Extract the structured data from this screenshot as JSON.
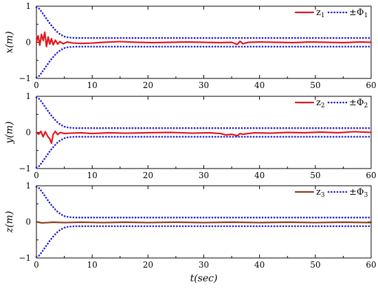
{
  "chart_data": [
    {
      "type": "line",
      "ylabel": "x(m)",
      "xlim": [
        0,
        60
      ],
      "ylim": [
        -1,
        1
      ],
      "xticks": [
        0,
        10,
        20,
        30,
        40,
        50,
        60
      ],
      "yticks": [
        -1,
        0,
        1
      ],
      "legend": [
        {
          "label": "z",
          "sub": "1",
          "color": "#e0161c",
          "style": "solid"
        },
        {
          "label": "±Φ",
          "sub": "1",
          "color": "#1f1fd0",
          "style": "dotted"
        }
      ],
      "series": [
        {
          "name": "z1",
          "color": "#e0161c",
          "style": "solid",
          "x": [
            0,
            0.3,
            0.6,
            0.9,
            1.2,
            1.5,
            1.8,
            2.1,
            2.4,
            2.7,
            3.0,
            3.4,
            3.8,
            4.2,
            4.8,
            5.5,
            6.5,
            8,
            10,
            12,
            15,
            18,
            21,
            24,
            27,
            30,
            33,
            35,
            36,
            36.5,
            37,
            38,
            40,
            43,
            46,
            49,
            52,
            55,
            58,
            60
          ],
          "values": [
            0,
            0.18,
            -0.08,
            0.22,
            0.05,
            0.28,
            -0.12,
            0.15,
            -0.05,
            0.1,
            -0.07,
            0.06,
            -0.05,
            0.02,
            -0.04,
            0.01,
            -0.02,
            -0.03,
            -0.02,
            0.0,
            0.02,
            0.0,
            -0.01,
            0.0,
            0.01,
            0.0,
            -0.01,
            0.0,
            -0.06,
            0.03,
            -0.04,
            0.0,
            0.01,
            0.0,
            -0.01,
            0.01,
            0.0,
            -0.01,
            0.01,
            0.0
          ]
        },
        {
          "name": "+Phi1",
          "color": "#1f1fd0",
          "style": "dotted",
          "x": [
            0,
            0.5,
            1,
            1.5,
            2,
            2.5,
            3,
            3.5,
            4,
            4.5,
            5,
            5.5,
            6,
            7,
            8,
            10,
            60
          ],
          "values": [
            0.97,
            0.93,
            0.83,
            0.72,
            0.61,
            0.5,
            0.41,
            0.32,
            0.25,
            0.2,
            0.16,
            0.14,
            0.13,
            0.12,
            0.12,
            0.12,
            0.12
          ]
        },
        {
          "name": "-Phi1",
          "color": "#1f1fd0",
          "style": "dotted",
          "x": [
            0,
            0.5,
            1,
            1.5,
            2,
            2.5,
            3,
            3.5,
            4,
            4.5,
            5,
            5.5,
            6,
            7,
            8,
            10,
            60
          ],
          "values": [
            -0.97,
            -0.93,
            -0.83,
            -0.72,
            -0.61,
            -0.5,
            -0.41,
            -0.32,
            -0.25,
            -0.2,
            -0.16,
            -0.14,
            -0.13,
            -0.12,
            -0.12,
            -0.12,
            -0.12
          ]
        }
      ]
    },
    {
      "type": "line",
      "ylabel": "y(m)",
      "xlim": [
        0,
        60
      ],
      "ylim": [
        -1,
        1
      ],
      "xticks": [
        0,
        10,
        20,
        30,
        40,
        50,
        60
      ],
      "yticks": [
        -1,
        0,
        1
      ],
      "legend": [
        {
          "label": "z",
          "sub": "2",
          "color": "#e0161c",
          "style": "solid"
        },
        {
          "label": "±Φ",
          "sub": "2",
          "color": "#1f1fd0",
          "style": "dotted"
        }
      ],
      "series": [
        {
          "name": "z2",
          "color": "#e0161c",
          "style": "solid",
          "x": [
            0,
            0.4,
            0.8,
            1.2,
            1.6,
            2.0,
            2.4,
            2.7,
            3.0,
            3.4,
            3.8,
            4.3,
            5,
            6,
            8,
            10,
            13,
            16,
            20,
            24,
            28,
            31,
            33,
            34,
            35,
            36,
            36.5,
            37,
            39,
            42,
            45,
            48,
            51,
            54,
            57,
            60
          ],
          "values": [
            0,
            -0.05,
            0.03,
            -0.12,
            0.02,
            -0.1,
            -0.18,
            -0.3,
            -0.05,
            0.03,
            -0.06,
            0.0,
            -0.03,
            -0.02,
            -0.01,
            -0.03,
            -0.01,
            -0.02,
            -0.01,
            0.0,
            -0.02,
            -0.01,
            -0.03,
            -0.07,
            -0.05,
            -0.09,
            -0.03,
            -0.05,
            -0.01,
            -0.02,
            0.0,
            -0.01,
            0.01,
            -0.01,
            0.02,
            0.0
          ]
        },
        {
          "name": "+Phi2",
          "color": "#1f1fd0",
          "style": "dotted",
          "x": [
            0,
            0.5,
            1,
            1.5,
            2,
            2.5,
            3,
            3.5,
            4,
            4.5,
            5,
            5.5,
            6,
            7,
            8,
            10,
            60
          ],
          "values": [
            0.97,
            0.93,
            0.83,
            0.72,
            0.61,
            0.5,
            0.41,
            0.32,
            0.25,
            0.2,
            0.16,
            0.14,
            0.13,
            0.12,
            0.12,
            0.12,
            0.12
          ]
        },
        {
          "name": "-Phi2",
          "color": "#1f1fd0",
          "style": "dotted",
          "x": [
            0,
            0.5,
            1,
            1.5,
            2,
            2.5,
            3,
            3.5,
            4,
            4.5,
            5,
            5.5,
            6,
            7,
            8,
            10,
            60
          ],
          "values": [
            -0.97,
            -0.93,
            -0.83,
            -0.72,
            -0.61,
            -0.5,
            -0.41,
            -0.32,
            -0.25,
            -0.2,
            -0.16,
            -0.14,
            -0.13,
            -0.12,
            -0.12,
            -0.12,
            -0.12
          ]
        }
      ]
    },
    {
      "type": "line",
      "ylabel": "z(m)",
      "xlabel": "t(sec)",
      "xlim": [
        0,
        60
      ],
      "ylim": [
        -1,
        1
      ],
      "xticks": [
        0,
        10,
        20,
        30,
        40,
        50,
        60
      ],
      "yticks": [
        -1,
        0,
        1
      ],
      "legend": [
        {
          "label": "z",
          "sub": "3",
          "color": "#8b3a1a",
          "style": "solid"
        },
        {
          "label": "±Φ",
          "sub": "3",
          "color": "#1f1fd0",
          "style": "dotted"
        }
      ],
      "series": [
        {
          "name": "z3",
          "color": "#8b3a1a",
          "style": "solid",
          "x": [
            0,
            1,
            2,
            3,
            5,
            8,
            12,
            16,
            20,
            25,
            30,
            35,
            40,
            45,
            50,
            55,
            60
          ],
          "values": [
            0,
            -0.03,
            -0.02,
            -0.01,
            -0.02,
            -0.01,
            -0.02,
            -0.01,
            -0.02,
            -0.01,
            -0.02,
            -0.01,
            -0.02,
            -0.01,
            -0.02,
            -0.01,
            -0.02
          ]
        },
        {
          "name": "+Phi3",
          "color": "#1f1fd0",
          "style": "dotted",
          "x": [
            0,
            0.5,
            1,
            1.5,
            2,
            2.5,
            3,
            3.5,
            4,
            4.5,
            5,
            5.5,
            6,
            7,
            8,
            10,
            60
          ],
          "values": [
            0.97,
            0.93,
            0.83,
            0.72,
            0.61,
            0.5,
            0.41,
            0.32,
            0.25,
            0.2,
            0.16,
            0.14,
            0.13,
            0.12,
            0.12,
            0.12,
            0.12
          ]
        },
        {
          "name": "-Phi3",
          "color": "#1f1fd0",
          "style": "dotted",
          "x": [
            0,
            0.5,
            1,
            1.5,
            2,
            2.5,
            3,
            3.5,
            4,
            4.5,
            5,
            5.5,
            6,
            7,
            8,
            10,
            60
          ],
          "values": [
            -0.97,
            -0.93,
            -0.83,
            -0.72,
            -0.61,
            -0.5,
            -0.41,
            -0.32,
            -0.25,
            -0.2,
            -0.16,
            -0.14,
            -0.13,
            -0.12,
            -0.12,
            -0.12,
            -0.12
          ]
        }
      ]
    }
  ]
}
